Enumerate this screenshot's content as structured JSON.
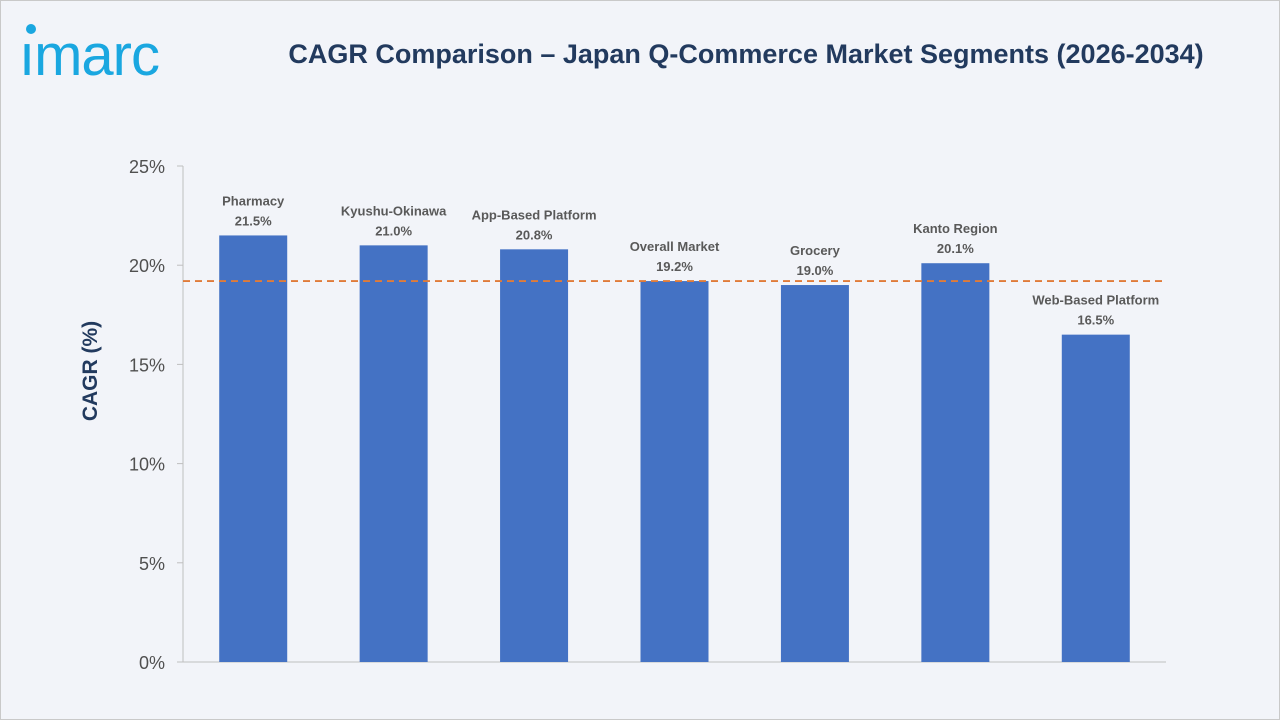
{
  "brand": {
    "logo_text": "imarc",
    "logo_color": "#1aa7e0"
  },
  "chart_data": {
    "type": "bar",
    "title": "CAGR Comparison – Japan Q-Commerce Market Segments (2026-2034)",
    "xlabel": "",
    "ylabel": "CAGR (%)",
    "ylim": [
      0,
      25
    ],
    "yticks": [
      "0%",
      "5%",
      "10%",
      "15%",
      "20%",
      "25%"
    ],
    "ytick_values": [
      0,
      5,
      10,
      15,
      20,
      25
    ],
    "categories": [
      "Pharmacy",
      "Kyushu-Okinawa",
      "App-Based Platform",
      "Overall Market",
      "Grocery",
      "Kanto Region",
      "Web-Based Platform"
    ],
    "values": [
      21.5,
      21.0,
      20.8,
      19.2,
      19.0,
      20.1,
      16.5
    ],
    "value_labels": [
      "21.5%",
      "21.0%",
      "20.8%",
      "19.2%",
      "19.0%",
      "20.1%",
      "16.5%"
    ],
    "reference_line": {
      "value": 19.2,
      "style": "dashed",
      "color": "#e07b39"
    },
    "bar_color": "#4472c4",
    "grid": false,
    "legend": "none"
  }
}
